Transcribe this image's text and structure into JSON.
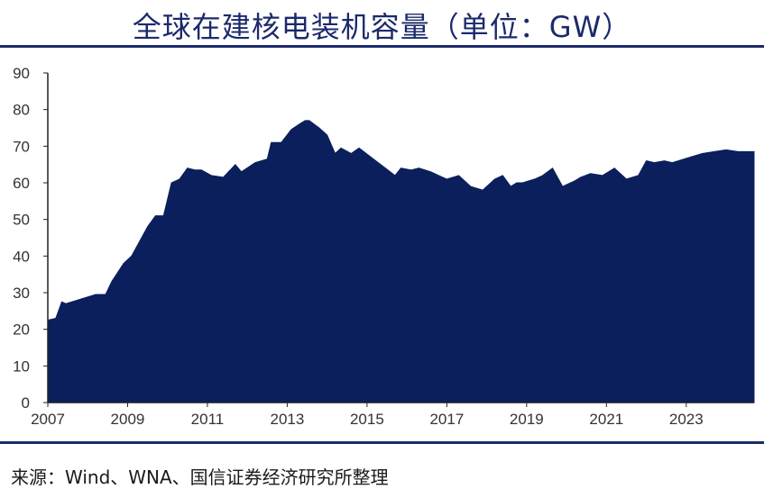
{
  "title": "全球在建核电装机容量（单位：GW）",
  "source": "来源：Wind、WNA、国信证券经济研究所整理",
  "colors": {
    "fill": "#0a1f5c",
    "rule": "#1b2a6b",
    "axis": "#222222"
  },
  "chart_data": {
    "type": "area",
    "title": "全球在建核电装机容量（单位：GW）",
    "xlabel": "",
    "ylabel": "",
    "ylim": [
      0,
      90
    ],
    "yticks": [
      0,
      10,
      20,
      30,
      40,
      50,
      60,
      70,
      80,
      90
    ],
    "xticks": [
      "2007",
      "2009",
      "2011",
      "2013",
      "2015",
      "2017",
      "2019",
      "2021",
      "2023"
    ],
    "xlim": [
      2007.0,
      2024.7
    ],
    "grid": false,
    "legend": "none",
    "series": [
      {
        "x": [
          2007.0,
          2007.2,
          2007.35,
          2007.45,
          2007.6,
          2007.9,
          2008.2,
          2008.45,
          2008.6,
          2008.9,
          2009.1,
          2009.3,
          2009.5,
          2009.7,
          2009.9,
          2010.1,
          2010.3,
          2010.5,
          2010.7,
          2010.85,
          2011.1,
          2011.4,
          2011.7,
          2011.85,
          2012.2,
          2012.5,
          2012.6,
          2012.85,
          2013.1,
          2013.3,
          2013.45,
          2013.55,
          2013.8,
          2014.0,
          2014.2,
          2014.35,
          2014.6,
          2014.8,
          2015.1,
          2015.4,
          2015.7,
          2015.85,
          2016.1,
          2016.3,
          2016.6,
          2016.8,
          2017.0,
          2017.3,
          2017.6,
          2017.9,
          2018.2,
          2018.4,
          2018.6,
          2018.75,
          2018.9,
          2019.2,
          2019.4,
          2019.65,
          2019.9,
          2020.2,
          2020.35,
          2020.6,
          2020.9,
          2021.2,
          2021.5,
          2021.8,
          2022.0,
          2022.2,
          2022.45,
          2022.65,
          2022.8,
          2023.1,
          2023.4,
          2023.7,
          2024.0,
          2024.3,
          2024.45,
          2024.6,
          2024.7
        ],
        "values": [
          22.5,
          23,
          27.5,
          27,
          27.5,
          28.5,
          29.5,
          29.5,
          33,
          38,
          40,
          44,
          48,
          51,
          51,
          60,
          61,
          64,
          63.5,
          63.5,
          62,
          61.5,
          65,
          63,
          65.5,
          66.5,
          71,
          71,
          74.5,
          76,
          77,
          77,
          75,
          73,
          68,
          69.5,
          68,
          69.5,
          67,
          64.5,
          62,
          64,
          63.5,
          64,
          63,
          62,
          61,
          62,
          59,
          58,
          61,
          62,
          59,
          60,
          60,
          61,
          62,
          64,
          59,
          60.5,
          61.5,
          62.5,
          62,
          64,
          61,
          62,
          66,
          65.5,
          66,
          65.5,
          66,
          67,
          68,
          68.5,
          69,
          68.5,
          68.5,
          68.5,
          68.5
        ]
      }
    ]
  }
}
